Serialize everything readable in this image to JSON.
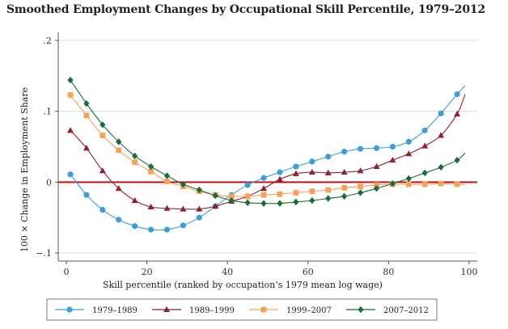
{
  "chart_data": {
    "type": "line",
    "title": "Smoothed Employment Changes by Occupational Skill Percentile, 1979–2012",
    "xlabel": "Skill percentile (ranked by occupation’s 1979 mean log wage)",
    "ylabel": "100 × Change in Employment Share",
    "xlim": [
      0,
      100
    ],
    "ylim": [
      -0.1,
      0.2
    ],
    "xticks": [
      0,
      20,
      40,
      60,
      80,
      100
    ],
    "xtick_labels": [
      "0",
      "20",
      "40",
      "60",
      "80",
      "100"
    ],
    "yticks": [
      -0.1,
      0,
      0.1,
      0.2
    ],
    "ytick_labels": [
      "−.1",
      "0",
      ".1",
      ".2"
    ],
    "reference_line": 0,
    "legend_position": "bottom",
    "series": [
      {
        "name": "1979–1989",
        "color": "#3d9fd3",
        "marker": "circle",
        "x": [
          1,
          5,
          9,
          13,
          17,
          21,
          25,
          29,
          33,
          37,
          41,
          45,
          49,
          53,
          57,
          61,
          65,
          69,
          73,
          77,
          81,
          85,
          89,
          93,
          97
        ],
        "values": [
          0.011,
          -0.018,
          -0.039,
          -0.053,
          -0.062,
          -0.067,
          -0.067,
          -0.061,
          -0.05,
          -0.034,
          -0.018,
          -0.004,
          0.006,
          0.014,
          0.022,
          0.029,
          0.036,
          0.043,
          0.047,
          0.048,
          0.05,
          0.057,
          0.073,
          0.097,
          0.124
        ]
      },
      {
        "name": "1989–1999",
        "color": "#8b2332",
        "marker": "triangle",
        "x": [
          1,
          5,
          9,
          13,
          17,
          21,
          25,
          29,
          33,
          37,
          41,
          45,
          49,
          53,
          57,
          61,
          65,
          69,
          73,
          77,
          81,
          85,
          89,
          93,
          97
        ],
        "values": [
          0.073,
          0.048,
          0.016,
          -0.009,
          -0.026,
          -0.035,
          -0.037,
          -0.038,
          -0.038,
          -0.034,
          -0.027,
          -0.02,
          -0.009,
          0.004,
          0.012,
          0.014,
          0.013,
          0.014,
          0.016,
          0.022,
          0.031,
          0.04,
          0.051,
          0.066,
          0.096
        ]
      },
      {
        "name": "1999–2007",
        "color": "#f4a259",
        "marker": "square",
        "x": [
          1,
          5,
          9,
          13,
          17,
          21,
          25,
          29,
          33,
          37,
          41,
          45,
          49,
          53,
          57,
          61,
          65,
          69,
          73,
          77,
          81,
          85,
          89,
          93,
          97
        ],
        "values": [
          0.123,
          0.094,
          0.066,
          0.045,
          0.028,
          0.015,
          0.001,
          -0.006,
          -0.013,
          -0.018,
          -0.02,
          -0.02,
          -0.018,
          -0.017,
          -0.015,
          -0.013,
          -0.011,
          -0.008,
          -0.006,
          -0.004,
          -0.003,
          -0.003,
          -0.003,
          -0.002,
          -0.003
        ]
      },
      {
        "name": "2007–2012",
        "color": "#1d6b3a",
        "marker": "diamond",
        "x": [
          1,
          5,
          9,
          13,
          17,
          21,
          25,
          29,
          33,
          37,
          41,
          45,
          49,
          53,
          57,
          61,
          65,
          69,
          73,
          77,
          81,
          85,
          89,
          93,
          97
        ],
        "values": [
          0.144,
          0.111,
          0.081,
          0.057,
          0.037,
          0.022,
          0.009,
          -0.003,
          -0.011,
          -0.019,
          -0.026,
          -0.029,
          -0.03,
          -0.03,
          -0.028,
          -0.026,
          -0.023,
          -0.02,
          -0.015,
          -0.009,
          -0.002,
          0.005,
          0.013,
          0.021,
          0.031
        ]
      }
    ],
    "curve_end_x": 99,
    "curve_end_values": [
      0.136,
      0.124,
      -0.003,
      0.041
    ]
  }
}
